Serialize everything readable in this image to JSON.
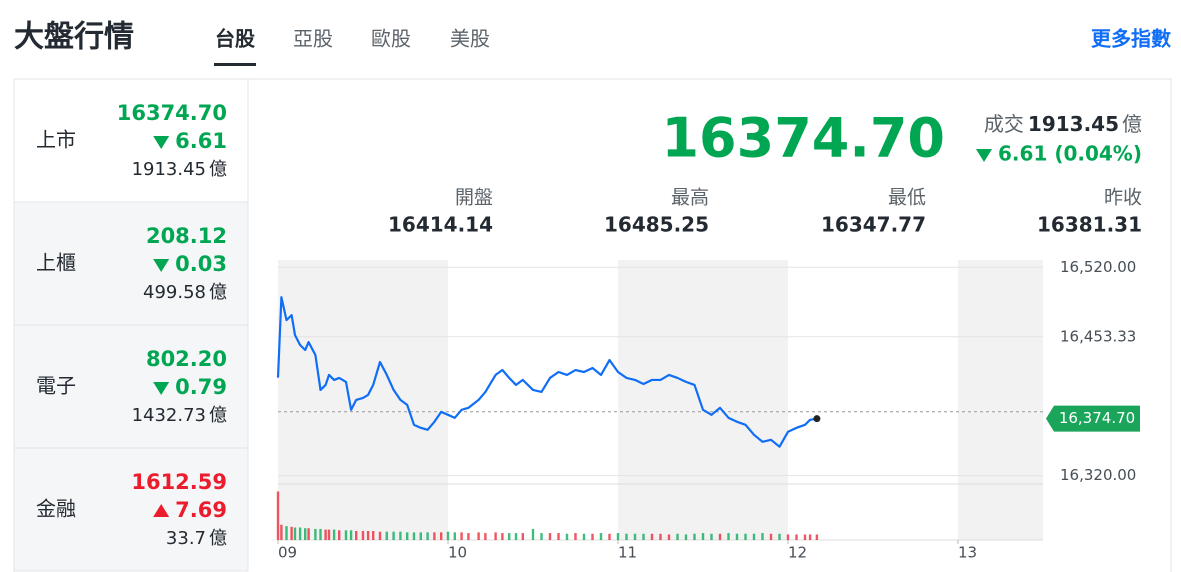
{
  "header": {
    "title": "大盤行情",
    "tabs": [
      "台股",
      "亞股",
      "歐股",
      "美股"
    ],
    "active_tab": 0,
    "more_link": "更多指數"
  },
  "theme": {
    "up": "#eb1c2d",
    "down": "#00a652",
    "link": "#0f6ef5"
  },
  "sidebar": {
    "active_item": 0,
    "items": [
      {
        "name": "上市",
        "price": "16374.70",
        "change": "6.61",
        "direction": "down",
        "volume": "1913.45",
        "unit": "億"
      },
      {
        "name": "上櫃",
        "price": "208.12",
        "change": "0.03",
        "direction": "down",
        "volume": "499.58",
        "unit": "億"
      },
      {
        "name": "電子",
        "price": "802.20",
        "change": "0.79",
        "direction": "down",
        "volume": "1432.73",
        "unit": "億"
      },
      {
        "name": "金融",
        "price": "1612.59",
        "change": "7.69",
        "direction": "up",
        "volume": "33.7",
        "unit": "億"
      }
    ]
  },
  "quote": {
    "price": "16374.70",
    "volume_label": "成交",
    "volume": "1913.45",
    "unit": "億",
    "change": "6.61 (0.04%)",
    "direction": "down",
    "stats": [
      {
        "label": "開盤",
        "value": "16414.14"
      },
      {
        "label": "最高",
        "value": "16485.25"
      },
      {
        "label": "最低",
        "value": "16347.77"
      },
      {
        "label": "昨收",
        "value": "16381.31"
      }
    ]
  },
  "chart_data": {
    "type": "line",
    "x": [
      9.0,
      9.02,
      9.05,
      9.08,
      9.1,
      9.13,
      9.16,
      9.18,
      9.22,
      9.25,
      9.28,
      9.3,
      9.33,
      9.36,
      9.4,
      9.43,
      9.46,
      9.5,
      9.53,
      9.56,
      9.6,
      9.64,
      9.68,
      9.72,
      9.76,
      9.8,
      9.84,
      9.88,
      9.92,
      9.96,
      10.0,
      10.04,
      10.08,
      10.12,
      10.18,
      10.22,
      10.28,
      10.32,
      10.36,
      10.4,
      10.44,
      10.5,
      10.55,
      10.6,
      10.65,
      10.7,
      10.75,
      10.8,
      10.85,
      10.9,
      10.95,
      11.0,
      11.05,
      11.1,
      11.15,
      11.2,
      11.25,
      11.3,
      11.35,
      11.4,
      11.45,
      11.5,
      11.55,
      11.6,
      11.65,
      11.7,
      11.75,
      11.8,
      11.85,
      11.9,
      11.95,
      12.0,
      12.05,
      12.1,
      12.13,
      12.17
    ],
    "xlim": [
      9,
      13.5
    ],
    "xticks": [
      {
        "value": 9,
        "label": "09"
      },
      10,
      11,
      12,
      13
    ],
    "ylim": [
      16312,
      16527
    ],
    "yticks": [
      {
        "value": 16520,
        "label": "16,520.00"
      },
      {
        "value": 16453.33,
        "label": "16,453.33"
      },
      {
        "value": 16320,
        "label": "16,320.00"
      }
    ],
    "grid": true,
    "series": [
      {
        "color": "#0f6ef5",
        "values": [
          16414.1,
          16491.3,
          16469.3,
          16474.1,
          16454.9,
          16445.4,
          16440.6,
          16448.2,
          16435.8,
          16402.3,
          16407.1,
          16416.7,
          16411.9,
          16413.8,
          16410.0,
          16383.2,
          16392.7,
          16394.6,
          16397.5,
          16407.1,
          16429.1,
          16416.7,
          16402.3,
          16392.7,
          16387.9,
          16368.8,
          16365.9,
          16364.0,
          16371.7,
          16381.2,
          16378.4,
          16375.5,
          16383.2,
          16385.1,
          16392.7,
          16400.4,
          16416.7,
          16421.4,
          16413.8,
          16407.1,
          16411.9,
          16402.3,
          16400.4,
          16413.8,
          16419.5,
          16416.7,
          16421.4,
          16419.5,
          16423.3,
          16416.7,
          16431.0,
          16419.5,
          16413.8,
          16411.9,
          16408.0,
          16411.9,
          16411.9,
          16416.7,
          16413.8,
          16410.0,
          16407.1,
          16383.2,
          16378.4,
          16385.1,
          16375.5,
          16371.7,
          16368.8,
          16359.2,
          16352.5,
          16354.4,
          16347.8,
          16362.1,
          16365.9,
          16368.8,
          16373.6,
          16374.7
        ]
      }
    ],
    "reference_line": 16381.31,
    "last_price": {
      "value": 16374.7,
      "label": "16,374.70"
    },
    "last_price_color": "#1aa55b",
    "volume": {
      "ylim": [
        0,
        75
      ],
      "values": [
        70,
        22,
        20,
        19,
        18,
        18,
        17,
        17,
        16,
        16,
        15,
        15,
        15,
        14,
        14,
        14,
        13,
        13,
        13,
        13,
        12,
        12,
        12,
        12,
        11,
        11,
        11,
        11,
        11,
        11,
        12,
        11,
        11,
        10,
        11,
        10,
        11,
        10,
        10,
        10,
        10,
        16,
        10,
        10,
        10,
        9,
        10,
        9,
        9,
        10,
        9,
        10,
        9,
        9,
        9,
        9,
        9,
        8,
        9,
        8,
        9,
        10,
        9,
        9,
        10,
        9,
        9,
        9,
        10,
        9,
        9,
        8,
        8,
        8,
        8,
        8
      ]
    }
  }
}
